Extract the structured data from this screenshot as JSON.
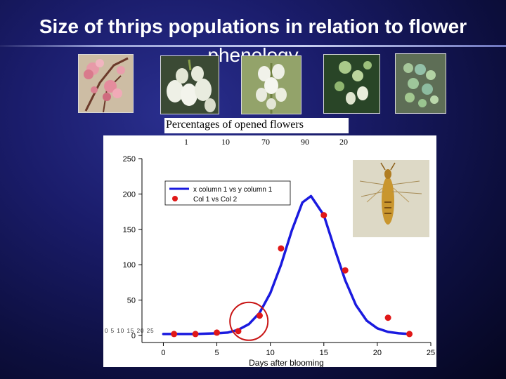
{
  "slide": {
    "title_line1": "Size of thrips populations in relation to flower",
    "title_line2": "phenology",
    "caption": "Percentages of opened flowers",
    "percent_labels": [
      "1",
      "10",
      "70",
      "90",
      "20"
    ]
  },
  "chart_data": {
    "type": "scatter",
    "xlabel": "Days after blooming",
    "ylabel": "",
    "xlim": [
      -2,
      25
    ],
    "ylim": [
      -10,
      250
    ],
    "xticks": [
      0,
      5,
      10,
      15,
      20,
      25
    ],
    "yticks": [
      0,
      50,
      100,
      150,
      200,
      250
    ],
    "legend_position": "top-left",
    "series": [
      {
        "name": "x column 1 vs y column 1",
        "kind": "line",
        "color": "#1a1adf",
        "x": [
          0,
          1,
          2,
          3,
          4,
          5,
          6,
          7,
          8,
          9,
          10,
          11,
          12,
          13,
          13.8,
          15,
          16,
          17,
          18,
          19,
          20,
          21,
          22,
          23
        ],
        "y": [
          2,
          2,
          2,
          2,
          2.5,
          3,
          4,
          8,
          16,
          32,
          60,
          100,
          148,
          188,
          197,
          170,
          123,
          78,
          43,
          21,
          10,
          5,
          3,
          2
        ]
      },
      {
        "name": "Col 1 vs Col 2",
        "kind": "points",
        "color": "#e01818",
        "x": [
          1,
          3,
          5,
          7,
          9,
          11,
          15,
          17,
          21,
          23
        ],
        "y": [
          2,
          2,
          4,
          6,
          28,
          123,
          170,
          92,
          25,
          2
        ]
      }
    ],
    "annotations": [
      {
        "type": "circle",
        "color": "#c81414",
        "x": 8,
        "y": 20
      }
    ],
    "tick_text": "0 5 10 15 20 25"
  },
  "colors": {
    "background": "#1a1c6a",
    "title": "#ffffff",
    "line": "#1a1adf",
    "points": "#e01818",
    "circle": "#c81414"
  },
  "images": [
    {
      "name": "flower-photo-1",
      "subject": "pink-buds"
    },
    {
      "name": "flower-photo-2",
      "subject": "white-bells"
    },
    {
      "name": "flower-photo-3",
      "subject": "white-bells-closeup"
    },
    {
      "name": "flower-photo-4",
      "subject": "green-fruit"
    },
    {
      "name": "flower-photo-5",
      "subject": "green-berries"
    },
    {
      "name": "thrips-photo",
      "subject": "thrips-insect"
    }
  ]
}
